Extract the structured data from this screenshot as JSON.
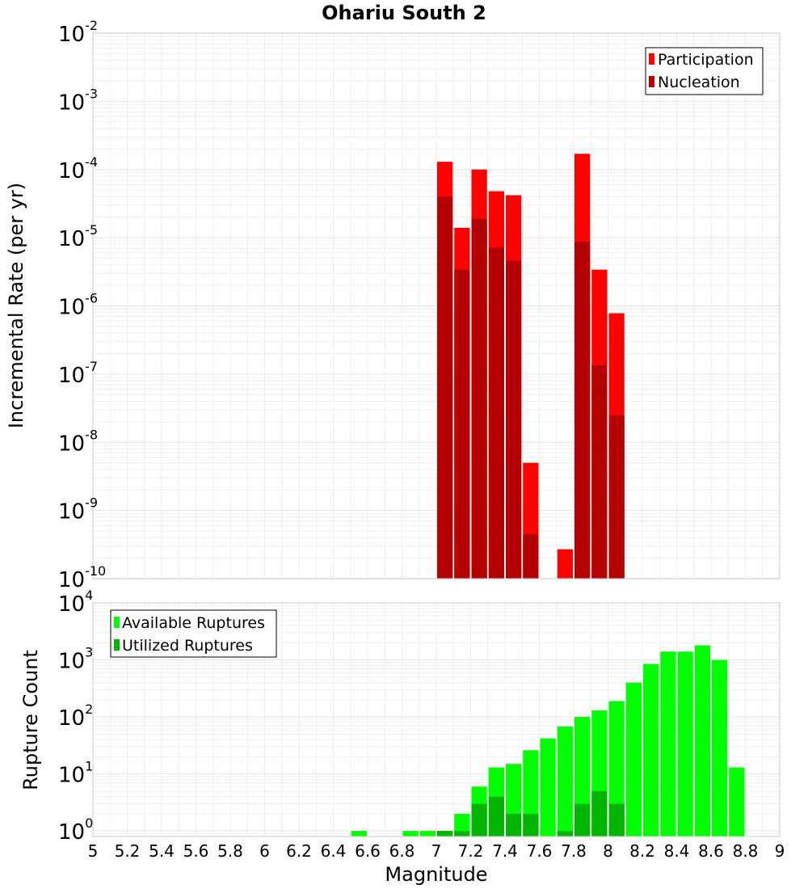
{
  "chart_data": [
    {
      "type": "bar",
      "title": "Ohariu South 2",
      "xlabel": "",
      "ylabel": "Incremental Rate (per yr)",
      "yscale": "log",
      "ylim": [
        1e-10,
        0.01
      ],
      "xlim": [
        5,
        9
      ],
      "yticks": [
        {
          "base": "10",
          "exp": "-2"
        },
        {
          "base": "10",
          "exp": "-3"
        },
        {
          "base": "10",
          "exp": "-4"
        },
        {
          "base": "10",
          "exp": "-5"
        },
        {
          "base": "10",
          "exp": "-6"
        },
        {
          "base": "10",
          "exp": "-7"
        },
        {
          "base": "10",
          "exp": "-8"
        },
        {
          "base": "10",
          "exp": "-9"
        },
        {
          "base": "10",
          "exp": "-10"
        }
      ],
      "legend_position": "top-right",
      "grid": true,
      "series": [
        {
          "name": "Participation",
          "color": "#ff0000",
          "x": [
            7.05,
            7.15,
            7.25,
            7.35,
            7.45,
            7.55,
            7.75,
            7.85,
            7.95,
            8.05
          ],
          "values": [
            0.00013,
            1.4e-05,
            0.0001,
            4.8e-05,
            4.2e-05,
            5e-09,
            2.7e-10,
            0.00017,
            3.4e-06,
            7.8e-07
          ]
        },
        {
          "name": "Nucleation",
          "color": "#b40000",
          "x": [
            7.05,
            7.15,
            7.25,
            7.35,
            7.45,
            7.55,
            7.85,
            7.95,
            8.05
          ],
          "values": [
            4e-05,
            3.4e-06,
            1.9e-05,
            7.2e-06,
            4.6e-06,
            4.5e-10,
            8.8e-06,
            1.35e-07,
            2.5e-08
          ]
        }
      ]
    },
    {
      "type": "bar",
      "title": "",
      "xlabel": "Magnitude",
      "ylabel": "Rupture Count",
      "yscale": "log",
      "ylim": [
        0.8,
        10000
      ],
      "xlim": [
        5,
        9
      ],
      "xticks": [
        "5",
        "5.2",
        "5.4",
        "5.6",
        "5.8",
        "6",
        "6.2",
        "6.4",
        "6.6",
        "6.8",
        "7",
        "7.2",
        "7.4",
        "7.6",
        "7.8",
        "8",
        "8.2",
        "8.4",
        "8.6",
        "8.8",
        "9"
      ],
      "yticks": [
        {
          "base": "10",
          "exp": "4"
        },
        {
          "base": "10",
          "exp": "3"
        },
        {
          "base": "10",
          "exp": "2"
        },
        {
          "base": "10",
          "exp": "1"
        },
        {
          "base": "10",
          "exp": "0"
        }
      ],
      "legend_position": "top-left",
      "grid": true,
      "series": [
        {
          "name": "Available Ruptures",
          "color": "#00ff00",
          "x": [
            6.55,
            6.85,
            6.95,
            7.05,
            7.15,
            7.25,
            7.35,
            7.45,
            7.55,
            7.65,
            7.75,
            7.85,
            7.95,
            8.05,
            8.15,
            8.25,
            8.35,
            8.45,
            8.55,
            8.65,
            8.75
          ],
          "values": [
            1,
            1,
            1,
            1,
            2,
            6,
            13,
            15,
            26,
            42,
            68,
            100,
            130,
            190,
            400,
            850,
            1400,
            1400,
            1800,
            1000,
            13
          ]
        },
        {
          "name": "Utilized Ruptures",
          "color": "#00b400",
          "x": [
            7.05,
            7.15,
            7.25,
            7.35,
            7.45,
            7.55,
            7.75,
            7.85,
            7.95,
            8.05
          ],
          "values": [
            1,
            1,
            3,
            4,
            2,
            2,
            1,
            3,
            5,
            3
          ]
        }
      ]
    }
  ]
}
